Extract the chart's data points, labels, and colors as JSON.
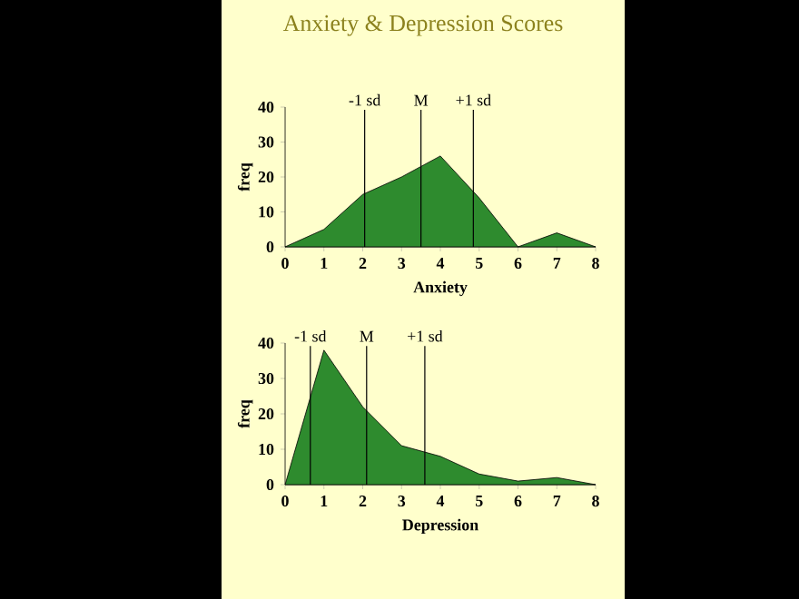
{
  "chart_data": [
    {
      "type": "area",
      "title": "Anxiety & Depression Scores",
      "xlabel": "Anxiety",
      "ylabel": "freq",
      "color": "#2e8b2e",
      "x": [
        0,
        1,
        2,
        3,
        4,
        5,
        6,
        7,
        8
      ],
      "values": [
        0,
        5,
        15,
        20,
        26,
        14,
        0,
        4,
        0
      ],
      "xlim": [
        0,
        8
      ],
      "xticks": [
        0,
        1,
        2,
        3,
        4,
        5,
        6,
        7,
        8
      ],
      "ylim": [
        0,
        40
      ],
      "yticks": [
        0,
        10,
        20,
        30,
        40
      ],
      "ref_lines": [
        {
          "axis": "x",
          "value": 2.05,
          "label": "-1 sd"
        },
        {
          "axis": "x",
          "value": 3.5,
          "label": "M"
        },
        {
          "axis": "x",
          "value": 4.85,
          "label": "+1 sd"
        }
      ]
    },
    {
      "type": "area",
      "xlabel": "Depression",
      "ylabel": "freq",
      "color": "#2e8b2e",
      "x": [
        0,
        1,
        2,
        3,
        4,
        5,
        6,
        7,
        8
      ],
      "values": [
        0,
        38,
        22,
        11,
        8,
        3,
        1,
        2,
        0
      ],
      "xlim": [
        0,
        8
      ],
      "xticks": [
        0,
        1,
        2,
        3,
        4,
        5,
        6,
        7,
        8
      ],
      "ylim": [
        0,
        40
      ],
      "yticks": [
        0,
        10,
        20,
        30,
        40
      ],
      "ref_lines": [
        {
          "axis": "x",
          "value": 0.65,
          "label": "-1 sd"
        },
        {
          "axis": "x",
          "value": 2.1,
          "label": "M"
        },
        {
          "axis": "x",
          "value": 3.6,
          "label": "+1 sd"
        }
      ]
    }
  ]
}
